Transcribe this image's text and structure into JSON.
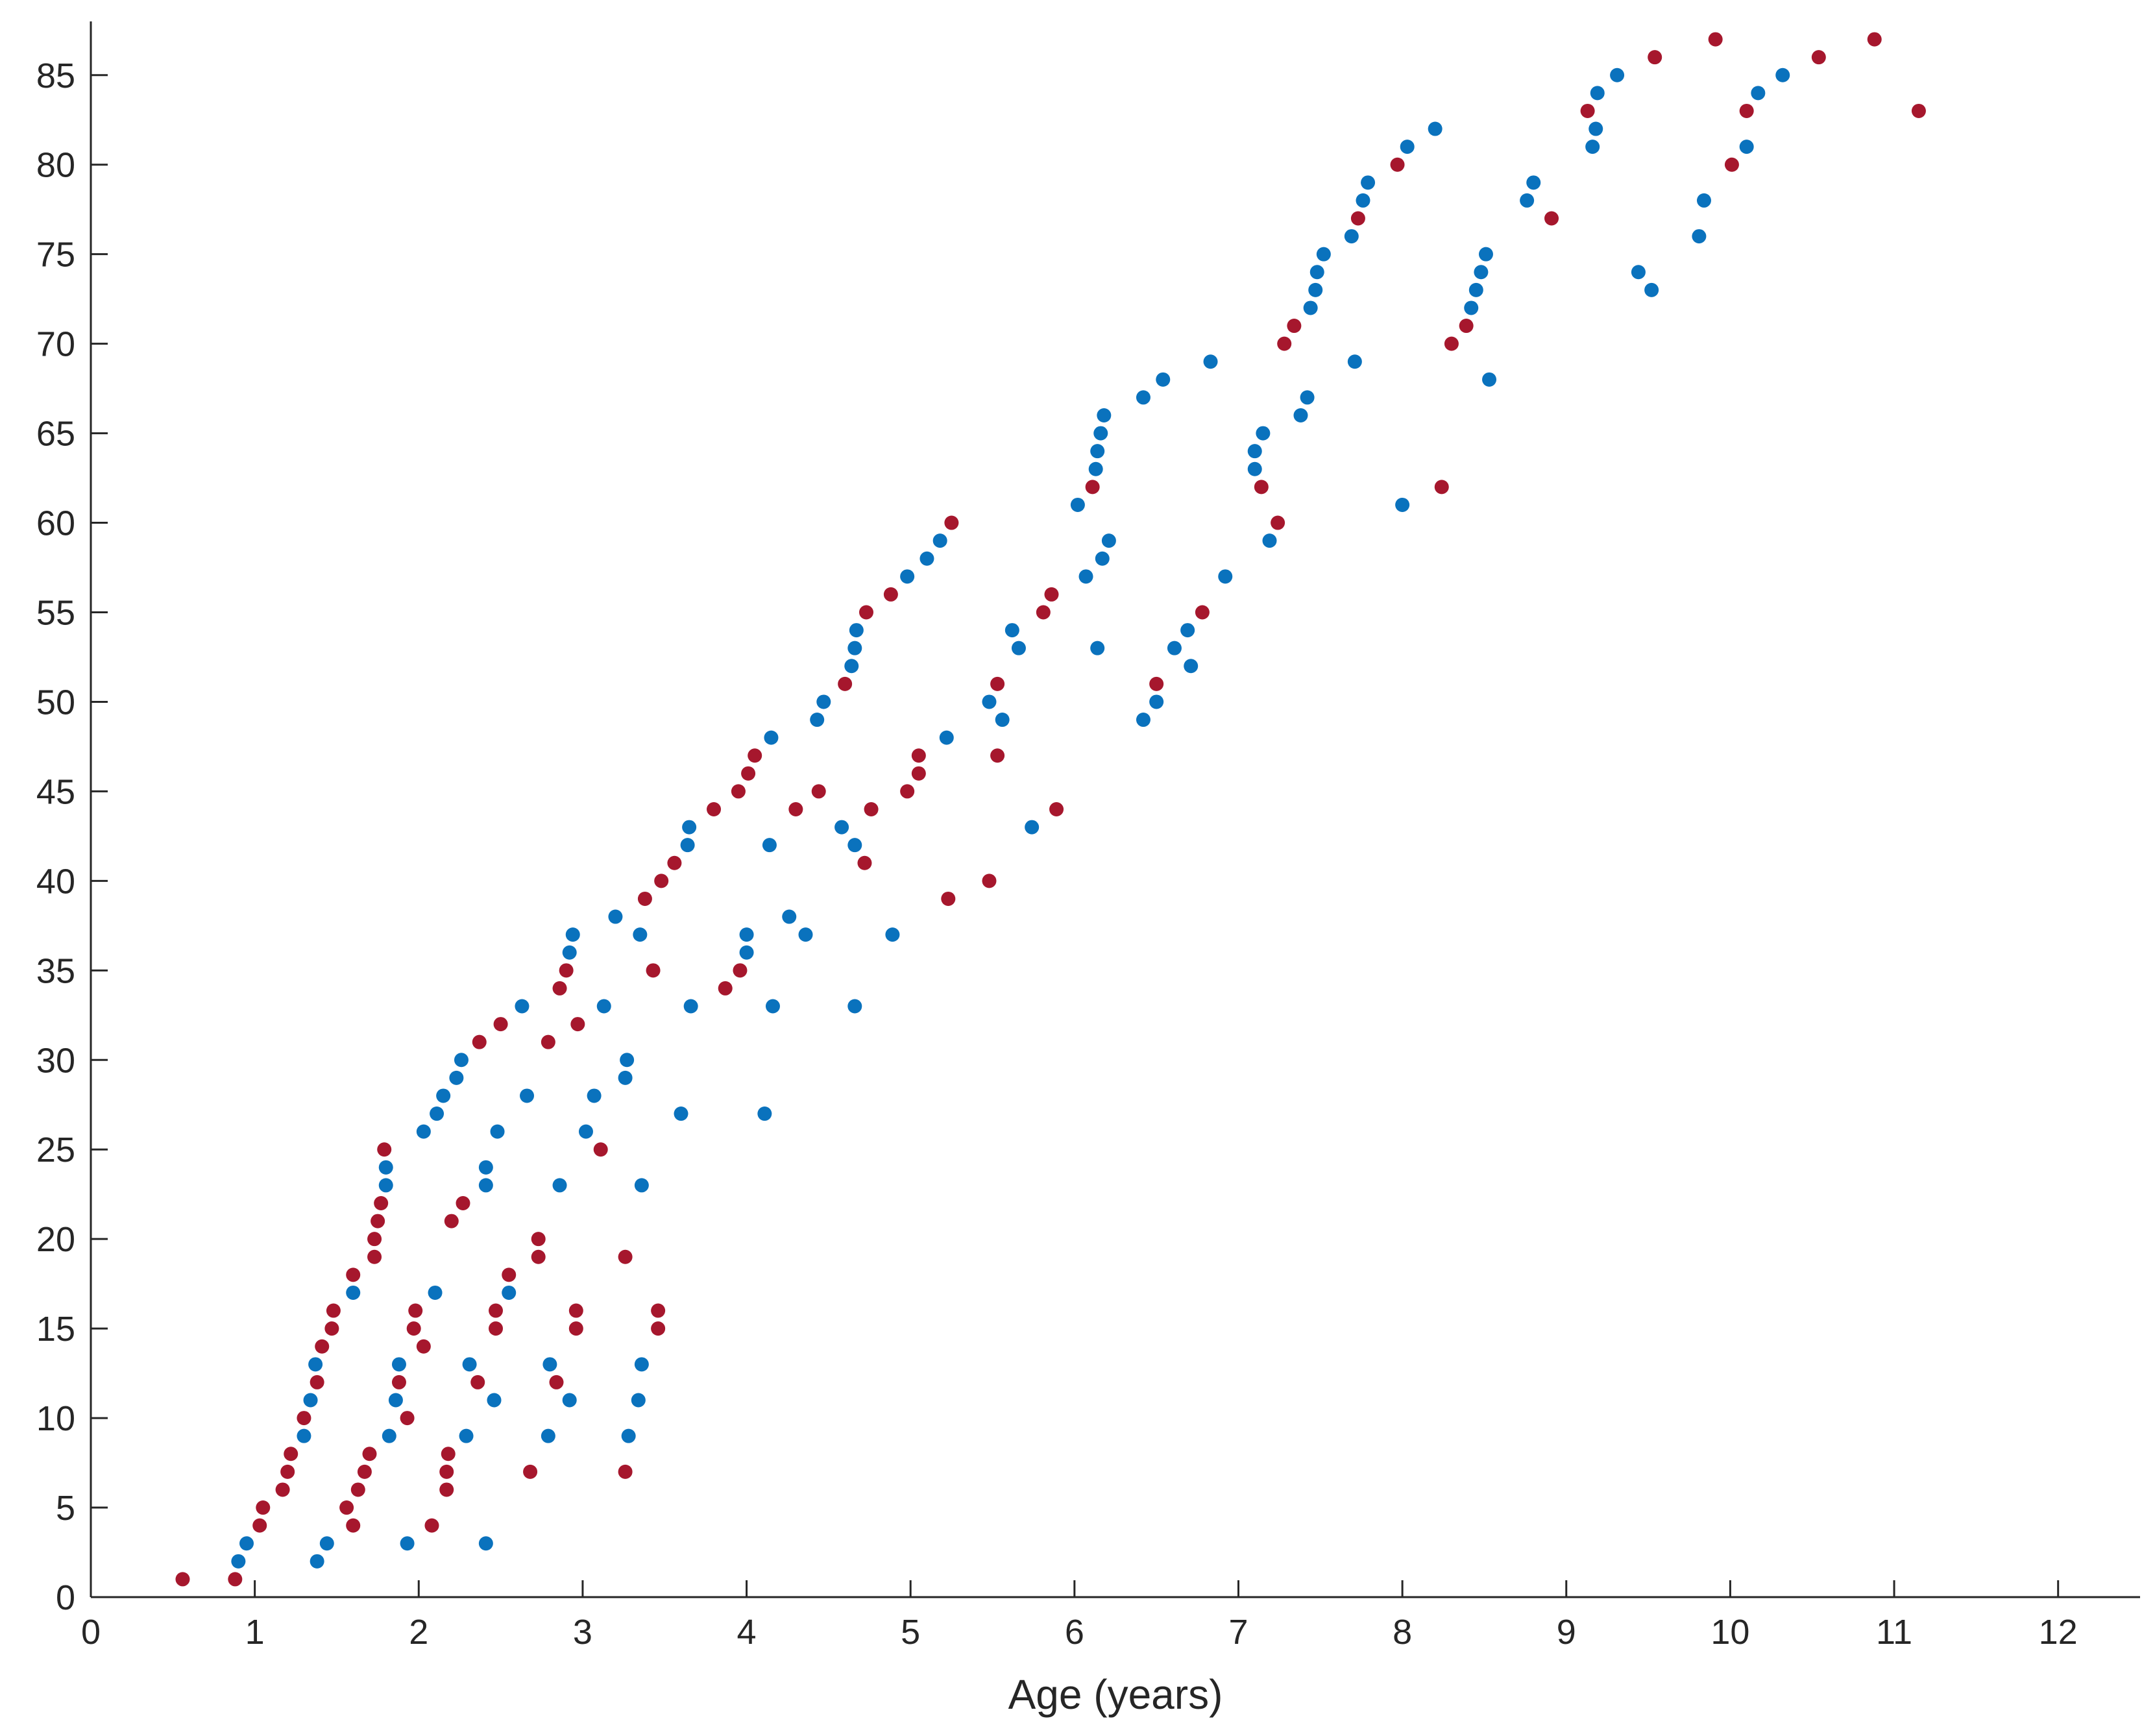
{
  "chart_data": {
    "type": "scatter",
    "xlabel": "Age (years)",
    "ylabel": "",
    "xlim": [
      0,
      12.5
    ],
    "ylim": [
      0,
      88
    ],
    "xticks": [
      0,
      1,
      2,
      3,
      4,
      5,
      6,
      7,
      8,
      9,
      10,
      11,
      12
    ],
    "yticks": [
      0,
      5,
      10,
      15,
      20,
      25,
      30,
      35,
      40,
      45,
      50,
      55,
      60,
      65,
      70,
      75,
      80,
      85
    ],
    "grid": false,
    "legend": "none",
    "colors": {
      "red": "#A6172D",
      "blue": "#0A72BD"
    },
    "series": [
      {
        "color": "#A6172D",
        "points": [
          [
            0.56,
            1
          ],
          [
            0.88,
            1
          ],
          [
            1.03,
            4
          ],
          [
            1.05,
            5
          ],
          [
            1.17,
            6
          ],
          [
            1.2,
            7
          ],
          [
            1.22,
            8
          ],
          [
            1.3,
            10
          ],
          [
            1.38,
            12
          ],
          [
            1.41,
            14
          ],
          [
            1.47,
            15
          ],
          [
            1.48,
            16
          ],
          [
            1.56,
            5
          ],
          [
            1.6,
            4
          ],
          [
            1.63,
            6
          ],
          [
            1.67,
            7
          ],
          [
            1.7,
            8
          ],
          [
            1.6,
            18
          ],
          [
            1.73,
            19
          ],
          [
            1.73,
            20
          ],
          [
            1.75,
            21
          ],
          [
            1.77,
            22
          ],
          [
            1.79,
            25
          ],
          [
            1.88,
            12
          ],
          [
            1.93,
            10
          ],
          [
            1.97,
            15
          ],
          [
            1.98,
            16
          ],
          [
            2.03,
            14
          ],
          [
            2.08,
            4
          ],
          [
            2.17,
            6
          ],
          [
            2.17,
            7
          ],
          [
            2.18,
            8
          ],
          [
            2.2,
            21
          ],
          [
            2.27,
            22
          ],
          [
            2.36,
            12
          ],
          [
            2.37,
            31
          ],
          [
            2.47,
            15
          ],
          [
            2.47,
            16
          ],
          [
            2.5,
            32
          ],
          [
            2.55,
            18
          ],
          [
            2.68,
            7
          ],
          [
            2.73,
            19
          ],
          [
            2.73,
            20
          ],
          [
            2.79,
            31
          ],
          [
            2.84,
            12
          ],
          [
            2.86,
            34
          ],
          [
            2.9,
            35
          ],
          [
            2.96,
            15
          ],
          [
            2.96,
            16
          ],
          [
            2.97,
            32
          ],
          [
            3.11,
            25
          ],
          [
            3.26,
            7
          ],
          [
            3.26,
            19
          ],
          [
            3.38,
            39
          ],
          [
            3.43,
            35
          ],
          [
            3.46,
            15
          ],
          [
            3.46,
            16
          ],
          [
            3.48,
            40
          ],
          [
            3.56,
            41
          ],
          [
            3.8,
            44
          ],
          [
            3.87,
            34
          ],
          [
            3.96,
            35
          ],
          [
            3.95,
            45
          ],
          [
            4.01,
            46
          ],
          [
            4.05,
            47
          ],
          [
            4.3,
            44
          ],
          [
            4.44,
            45
          ],
          [
            4.6,
            51
          ],
          [
            4.72,
            41
          ],
          [
            4.73,
            55
          ],
          [
            4.76,
            44
          ],
          [
            4.88,
            56
          ],
          [
            4.98,
            45
          ],
          [
            5.05,
            46
          ],
          [
            5.05,
            47
          ],
          [
            5.23,
            39
          ],
          [
            5.25,
            60
          ],
          [
            5.48,
            40
          ],
          [
            5.53,
            47
          ],
          [
            5.53,
            51
          ],
          [
            5.81,
            55
          ],
          [
            5.86,
            56
          ],
          [
            5.89,
            44
          ],
          [
            6.11,
            62
          ],
          [
            6.5,
            51
          ],
          [
            6.78,
            55
          ],
          [
            7.14,
            62
          ],
          [
            7.24,
            60
          ],
          [
            7.28,
            70
          ],
          [
            7.34,
            71
          ],
          [
            7.73,
            77
          ],
          [
            7.97,
            80
          ],
          [
            8.24,
            62
          ],
          [
            8.3,
            70
          ],
          [
            8.39,
            71
          ],
          [
            8.91,
            77
          ],
          [
            9.13,
            83
          ],
          [
            9.54,
            86
          ],
          [
            9.91,
            87
          ],
          [
            10.01,
            80
          ],
          [
            10.1,
            83
          ],
          [
            10.54,
            86
          ],
          [
            10.88,
            87
          ],
          [
            11.15,
            83
          ]
        ]
      },
      {
        "color": "#0A72BD",
        "points": [
          [
            0.9,
            2
          ],
          [
            0.95,
            3
          ],
          [
            1.3,
            9
          ],
          [
            1.34,
            11
          ],
          [
            1.37,
            13
          ],
          [
            1.38,
            2
          ],
          [
            1.44,
            3
          ],
          [
            1.6,
            17
          ],
          [
            1.8,
            23
          ],
          [
            1.8,
            24
          ],
          [
            1.82,
            9
          ],
          [
            1.86,
            11
          ],
          [
            1.88,
            13
          ],
          [
            1.93,
            3
          ],
          [
            2.03,
            26
          ],
          [
            2.1,
            17
          ],
          [
            2.11,
            27
          ],
          [
            2.15,
            28
          ],
          [
            2.23,
            29
          ],
          [
            2.26,
            30
          ],
          [
            2.29,
            9
          ],
          [
            2.31,
            13
          ],
          [
            2.41,
            3
          ],
          [
            2.41,
            23
          ],
          [
            2.41,
            24
          ],
          [
            2.46,
            11
          ],
          [
            2.48,
            26
          ],
          [
            2.55,
            17
          ],
          [
            2.63,
            33
          ],
          [
            2.66,
            28
          ],
          [
            2.79,
            9
          ],
          [
            2.8,
            13
          ],
          [
            2.86,
            23
          ],
          [
            2.92,
            11
          ],
          [
            2.92,
            36
          ],
          [
            2.94,
            37
          ],
          [
            3.02,
            26
          ],
          [
            3.07,
            28
          ],
          [
            3.13,
            33
          ],
          [
            3.2,
            38
          ],
          [
            3.26,
            29
          ],
          [
            3.27,
            30
          ],
          [
            3.28,
            9
          ],
          [
            3.34,
            11
          ],
          [
            3.35,
            37
          ],
          [
            3.36,
            13
          ],
          [
            3.36,
            23
          ],
          [
            3.6,
            27
          ],
          [
            3.64,
            42
          ],
          [
            3.65,
            43
          ],
          [
            3.66,
            33
          ],
          [
            4.0,
            36
          ],
          [
            4.0,
            37
          ],
          [
            4.11,
            27
          ],
          [
            4.14,
            42
          ],
          [
            4.15,
            48
          ],
          [
            4.16,
            33
          ],
          [
            4.26,
            38
          ],
          [
            4.36,
            37
          ],
          [
            4.43,
            49
          ],
          [
            4.47,
            50
          ],
          [
            4.58,
            43
          ],
          [
            4.64,
            52
          ],
          [
            4.66,
            42
          ],
          [
            4.66,
            53
          ],
          [
            4.67,
            54
          ],
          [
            4.66,
            33
          ],
          [
            4.89,
            37
          ],
          [
            4.98,
            57
          ],
          [
            5.1,
            58
          ],
          [
            5.18,
            59
          ],
          [
            5.22,
            48
          ],
          [
            5.48,
            50
          ],
          [
            5.56,
            49
          ],
          [
            5.62,
            54
          ],
          [
            5.66,
            53
          ],
          [
            5.74,
            43
          ],
          [
            6.02,
            61
          ],
          [
            6.07,
            57
          ],
          [
            6.13,
            63
          ],
          [
            6.14,
            53
          ],
          [
            6.14,
            64
          ],
          [
            6.16,
            65
          ],
          [
            6.17,
            58
          ],
          [
            6.18,
            66
          ],
          [
            6.21,
            59
          ],
          [
            6.42,
            67
          ],
          [
            6.42,
            49
          ],
          [
            6.5,
            50
          ],
          [
            6.54,
            68
          ],
          [
            6.61,
            53
          ],
          [
            6.69,
            54
          ],
          [
            6.71,
            52
          ],
          [
            6.83,
            69
          ],
          [
            6.92,
            57
          ],
          [
            7.1,
            63
          ],
          [
            7.1,
            64
          ],
          [
            7.15,
            65
          ],
          [
            7.19,
            59
          ],
          [
            7.38,
            66
          ],
          [
            7.42,
            67
          ],
          [
            7.44,
            72
          ],
          [
            7.47,
            73
          ],
          [
            7.48,
            74
          ],
          [
            7.52,
            75
          ],
          [
            7.69,
            76
          ],
          [
            7.71,
            69
          ],
          [
            7.76,
            78
          ],
          [
            7.79,
            79
          ],
          [
            8.0,
            61
          ],
          [
            8.03,
            81
          ],
          [
            8.2,
            82
          ],
          [
            8.42,
            72
          ],
          [
            8.45,
            73
          ],
          [
            8.48,
            74
          ],
          [
            8.51,
            75
          ],
          [
            8.53,
            68
          ],
          [
            8.76,
            78
          ],
          [
            8.8,
            79
          ],
          [
            9.16,
            81
          ],
          [
            9.18,
            82
          ],
          [
            9.19,
            84
          ],
          [
            9.31,
            85
          ],
          [
            9.44,
            74
          ],
          [
            9.52,
            73
          ],
          [
            9.81,
            76
          ],
          [
            9.84,
            78
          ],
          [
            10.1,
            81
          ],
          [
            10.17,
            84
          ],
          [
            10.32,
            85
          ]
        ]
      }
    ]
  }
}
